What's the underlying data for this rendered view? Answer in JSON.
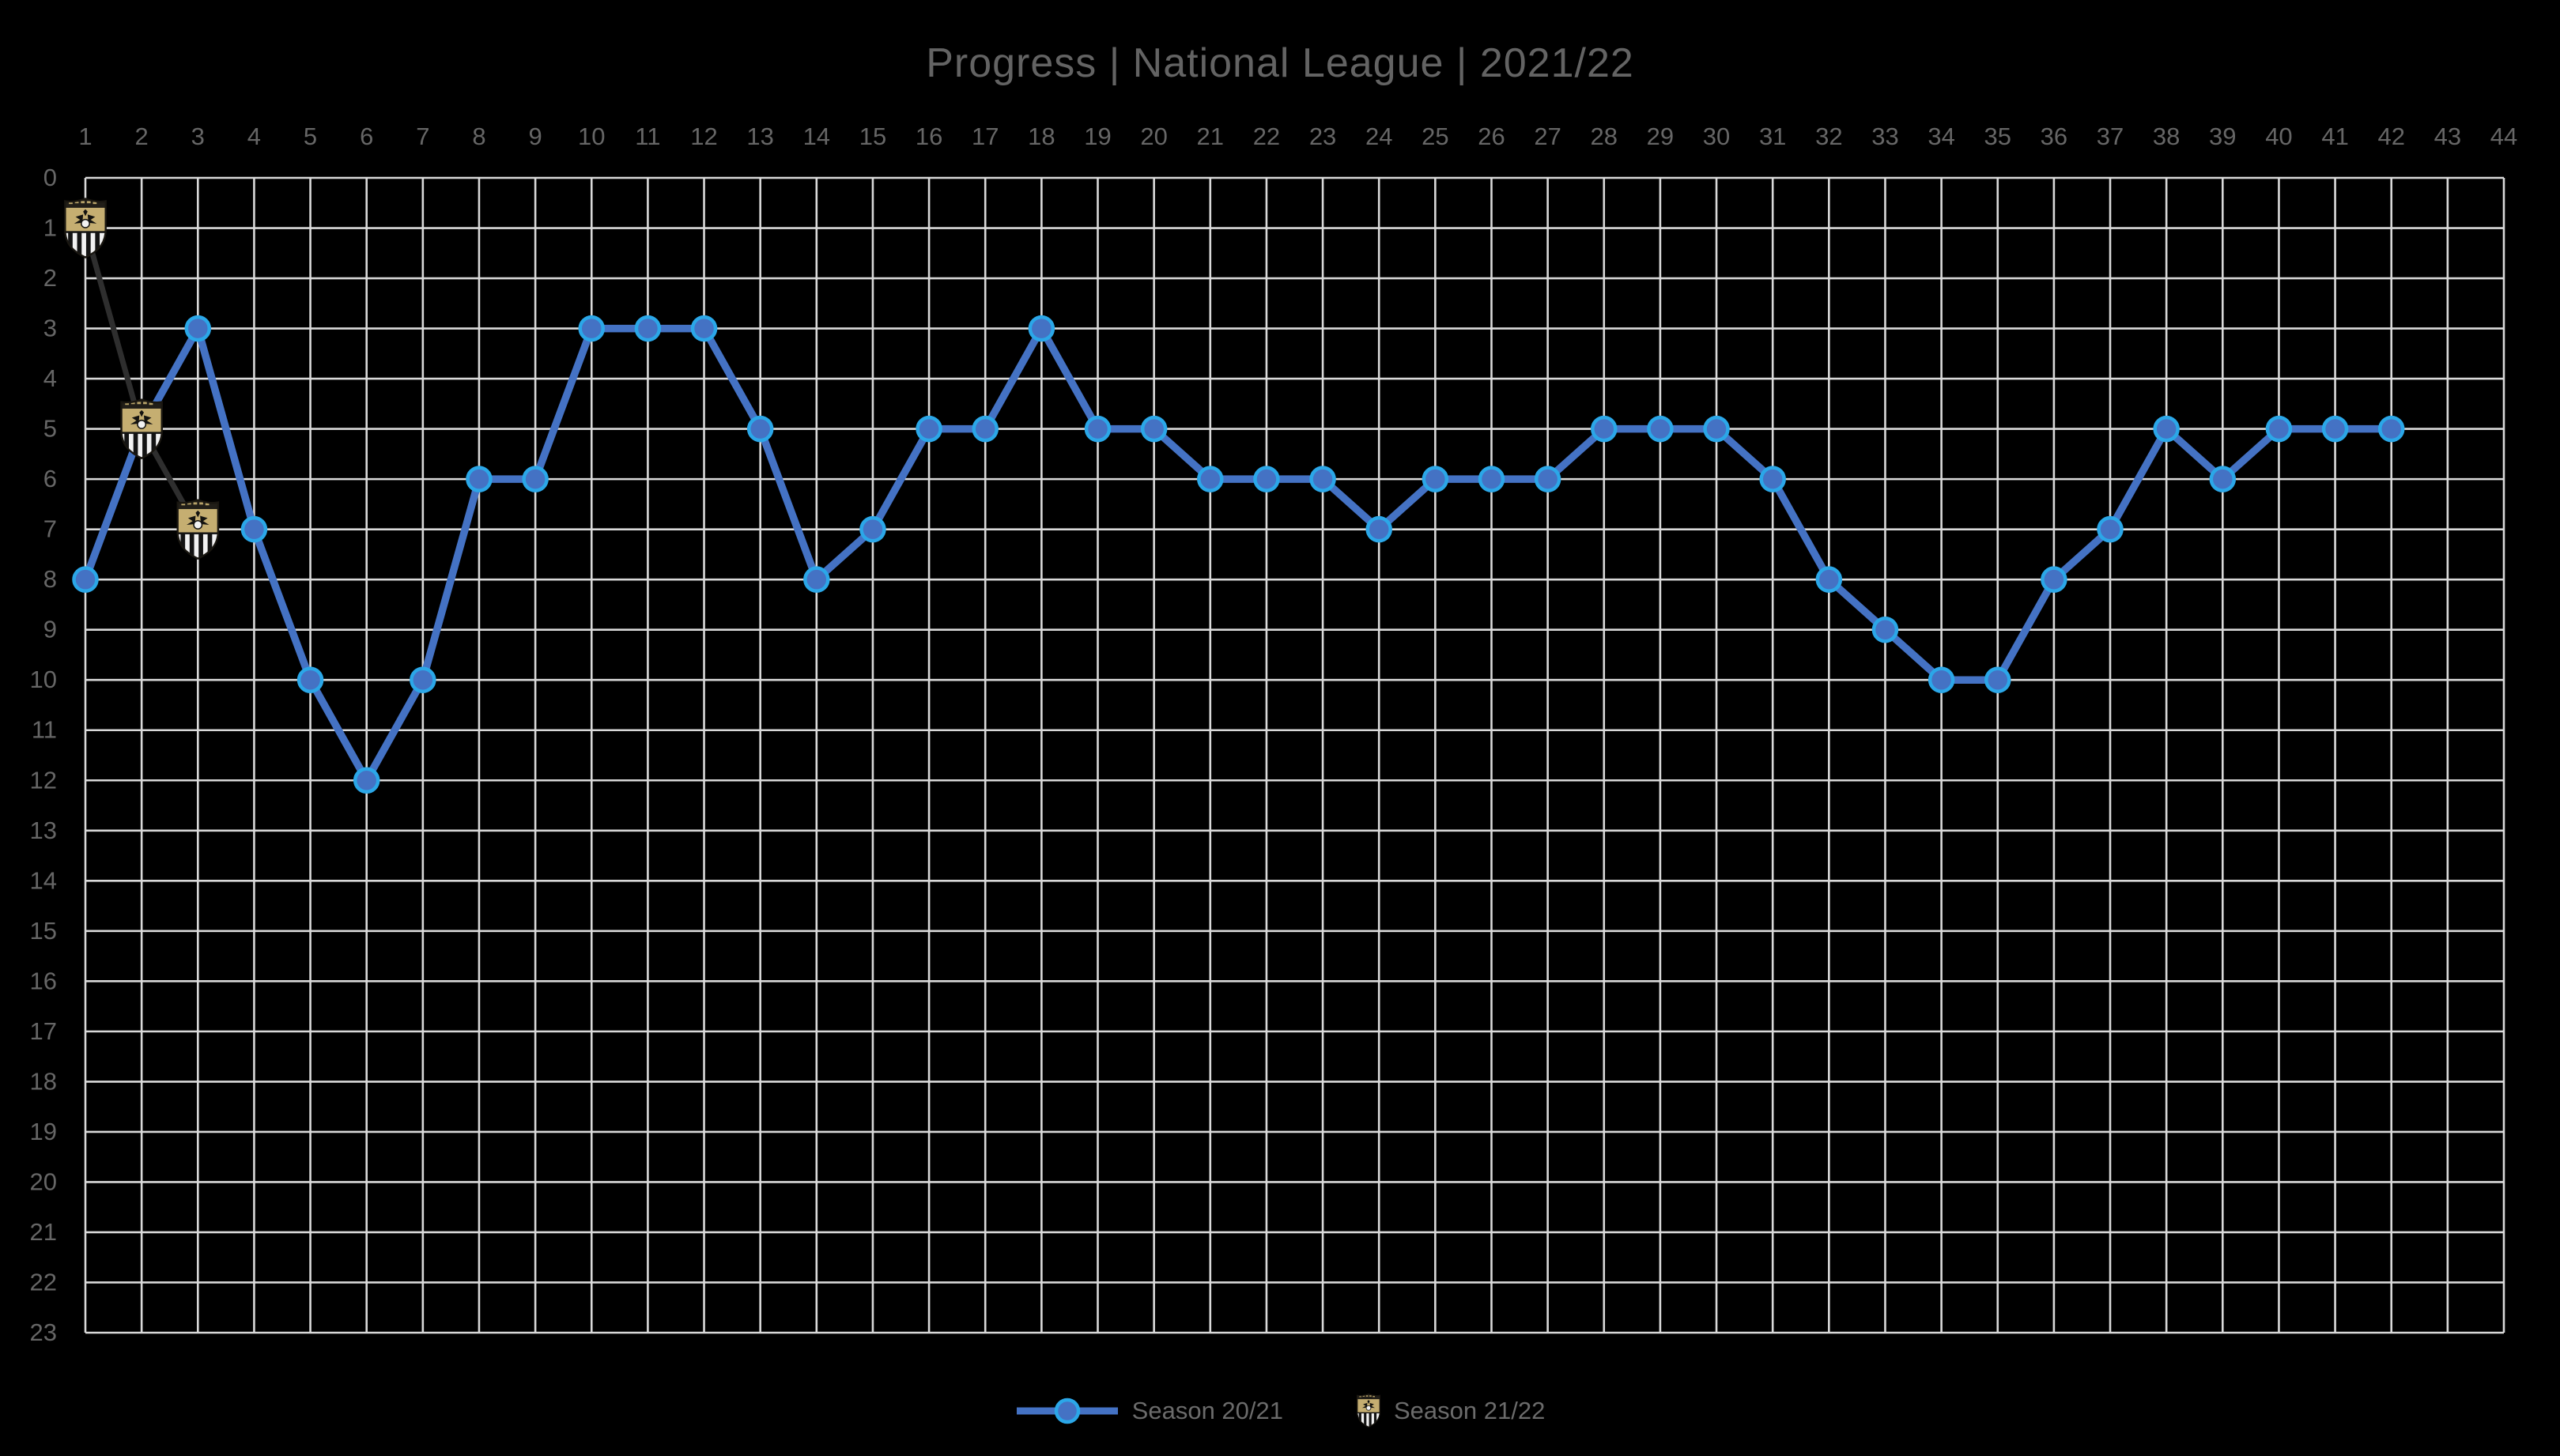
{
  "title": "Progress | National League | 2021/22",
  "legend": {
    "items": [
      {
        "label": "Season 20/21",
        "marker": "blue-line-circle"
      },
      {
        "label": "Season 21/22",
        "marker": "club-badge"
      }
    ]
  },
  "colors": {
    "background": "#000000",
    "gridline": "#D9D9D9",
    "axis_text": "#666666",
    "title_text": "#636363",
    "season_2021_line": "#4472C4",
    "season_2021_marker_fill": "#4472C4",
    "season_2021_marker_ring": "#2BA7E8",
    "season_2122_line": "#2E2E2E",
    "badge_gold": "#C5AE71"
  },
  "chart_data": {
    "type": "line",
    "title": "Progress | National League | 2021/22",
    "xlabel": "",
    "ylabel": "",
    "x_axis_position": "top",
    "y_axis_inverted": true,
    "y_meaning": "league position (1 = top)",
    "grid": true,
    "legend_position": "bottom-center",
    "x_ticks": [
      1,
      2,
      3,
      4,
      5,
      6,
      7,
      8,
      9,
      10,
      11,
      12,
      13,
      14,
      15,
      16,
      17,
      18,
      19,
      20,
      21,
      22,
      23,
      24,
      25,
      26,
      27,
      28,
      29,
      30,
      31,
      32,
      33,
      34,
      35,
      36,
      37,
      38,
      39,
      40,
      41,
      42,
      43,
      44
    ],
    "y_ticks": [
      0,
      1,
      2,
      3,
      4,
      5,
      6,
      7,
      8,
      9,
      10,
      11,
      12,
      13,
      14,
      15,
      16,
      17,
      18,
      19,
      20,
      21,
      22,
      23
    ],
    "xlim": [
      1,
      44
    ],
    "ylim": [
      0,
      23
    ],
    "series": [
      {
        "name": "Season 20/21",
        "marker": "circle",
        "color": "#4472C4",
        "start_x": 1,
        "values": [
          8,
          5,
          3,
          7,
          10,
          12,
          10,
          6,
          6,
          3,
          3,
          3,
          5,
          8,
          7,
          5,
          5,
          3,
          5,
          5,
          6,
          6,
          6,
          7,
          6,
          6,
          6,
          5,
          5,
          5,
          6,
          8,
          9,
          10,
          10,
          8,
          7,
          5,
          6,
          5,
          5,
          5
        ]
      },
      {
        "name": "Season 21/22",
        "marker": "club-badge",
        "color": "#2E2E2E",
        "start_x": 1,
        "values": [
          1,
          5,
          7
        ]
      }
    ]
  }
}
